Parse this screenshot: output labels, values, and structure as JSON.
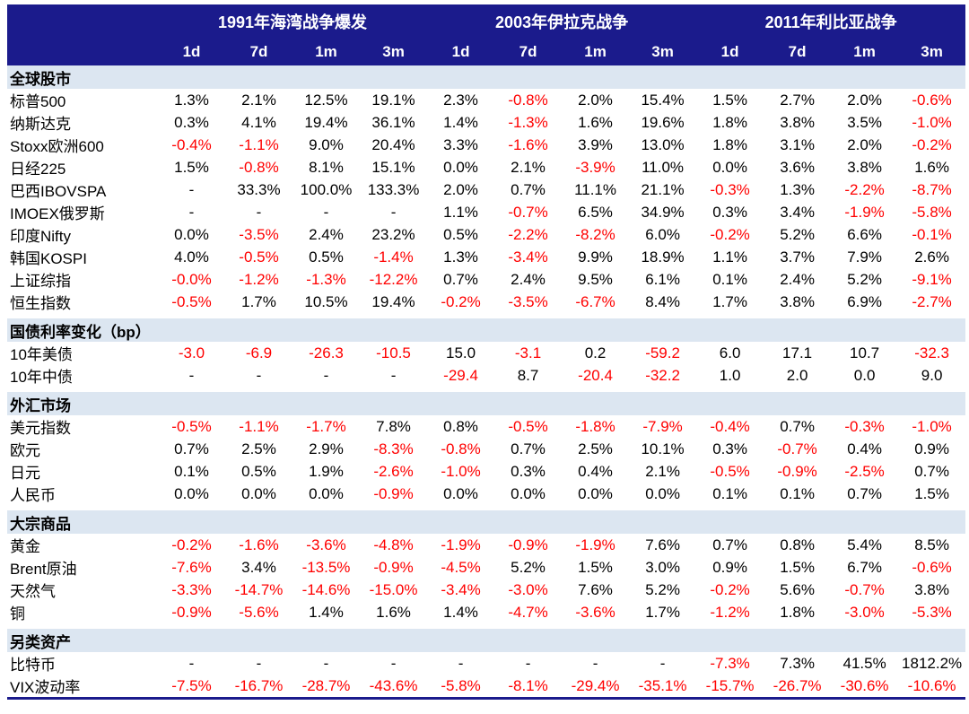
{
  "colors": {
    "header_bg": "#1B1B8C",
    "section_bg": "#DCE6F1",
    "negative_text": "#FF0000",
    "positive_text": "#000000",
    "page_bg": "#FFFFFF"
  },
  "chart_data": {
    "type": "table",
    "column_groups": [
      {
        "label": "1991年海湾战争爆发",
        "sub_columns": [
          "1d",
          "7d",
          "1m",
          "3m"
        ]
      },
      {
        "label": "2003年伊拉克战争",
        "sub_columns": [
          "1d",
          "7d",
          "1m",
          "3m"
        ]
      },
      {
        "label": "2011年利比亚战争",
        "sub_columns": [
          "1d",
          "7d",
          "1m",
          "3m"
        ]
      }
    ],
    "sections": [
      {
        "title": "全球股市",
        "rows": [
          {
            "label": "标普500",
            "values": [
              "1.3%",
              "2.1%",
              "12.5%",
              "19.1%",
              "2.3%",
              "-0.8%",
              "2.0%",
              "15.4%",
              "1.5%",
              "2.7%",
              "2.0%",
              "-0.6%"
            ]
          },
          {
            "label": "纳斯达克",
            "values": [
              "0.3%",
              "4.1%",
              "19.4%",
              "36.1%",
              "1.4%",
              "-1.3%",
              "1.6%",
              "19.6%",
              "1.8%",
              "3.8%",
              "3.5%",
              "-1.0%"
            ]
          },
          {
            "label": "Stoxx欧洲600",
            "values": [
              "-0.4%",
              "-1.1%",
              "9.0%",
              "20.4%",
              "3.3%",
              "-1.6%",
              "3.9%",
              "13.0%",
              "1.8%",
              "3.1%",
              "2.0%",
              "-0.2%"
            ]
          },
          {
            "label": "日经225",
            "values": [
              "1.5%",
              "-0.8%",
              "8.1%",
              "15.1%",
              "0.0%",
              "2.1%",
              "-3.9%",
              "11.0%",
              "0.0%",
              "3.6%",
              "3.8%",
              "1.6%"
            ]
          },
          {
            "label": "巴西IBOVSPA",
            "values": [
              "-",
              "33.3%",
              "100.0%",
              "133.3%",
              "2.0%",
              "0.7%",
              "11.1%",
              "21.1%",
              "-0.3%",
              "1.3%",
              "-2.2%",
              "-8.7%"
            ]
          },
          {
            "label": "IMOEX俄罗斯",
            "values": [
              "-",
              "-",
              "-",
              "-",
              "1.1%",
              "-0.7%",
              "6.5%",
              "34.9%",
              "0.3%",
              "3.4%",
              "-1.9%",
              "-5.8%"
            ]
          },
          {
            "label": "印度Nifty",
            "values": [
              "0.0%",
              "-3.5%",
              "2.4%",
              "23.2%",
              "0.5%",
              "-2.2%",
              "-8.2%",
              "6.0%",
              "-0.2%",
              "5.2%",
              "6.6%",
              "-0.1%"
            ]
          },
          {
            "label": "韩国KOSPI",
            "values": [
              "4.0%",
              "-0.5%",
              "0.5%",
              "-1.4%",
              "1.3%",
              "-3.4%",
              "9.9%",
              "18.9%",
              "1.1%",
              "3.7%",
              "7.9%",
              "2.6%"
            ]
          },
          {
            "label": "上证综指",
            "values": [
              "-0.0%",
              "-1.2%",
              "-1.3%",
              "-12.2%",
              "0.7%",
              "2.4%",
              "9.5%",
              "6.1%",
              "0.1%",
              "2.4%",
              "5.2%",
              "-9.1%"
            ]
          },
          {
            "label": "恒生指数",
            "values": [
              "-0.5%",
              "1.7%",
              "10.5%",
              "19.4%",
              "-0.2%",
              "-3.5%",
              "-6.7%",
              "8.4%",
              "1.7%",
              "3.8%",
              "6.9%",
              "-2.7%"
            ]
          }
        ]
      },
      {
        "title": "国债利率变化（bp）",
        "rows": [
          {
            "label": "10年美债",
            "values": [
              "-3.0",
              "-6.9",
              "-26.3",
              "-10.5",
              "15.0",
              "-3.1",
              "0.2",
              "-59.2",
              "6.0",
              "17.1",
              "10.7",
              "-32.3"
            ]
          },
          {
            "label": "10年中债",
            "values": [
              "-",
              "-",
              "-",
              "-",
              "-29.4",
              "8.7",
              "-20.4",
              "-32.2",
              "1.0",
              "2.0",
              "0.0",
              "9.0"
            ]
          }
        ]
      },
      {
        "title": "外汇市场",
        "rows": [
          {
            "label": "美元指数",
            "values": [
              "-0.5%",
              "-1.1%",
              "-1.7%",
              "7.8%",
              "0.8%",
              "-0.5%",
              "-1.8%",
              "-7.9%",
              "-0.4%",
              "0.7%",
              "-0.3%",
              "-1.0%"
            ]
          },
          {
            "label": "欧元",
            "values": [
              "0.7%",
              "2.5%",
              "2.9%",
              "-8.3%",
              "-0.8%",
              "0.7%",
              "2.5%",
              "10.1%",
              "0.3%",
              "-0.7%",
              "0.4%",
              "0.9%"
            ]
          },
          {
            "label": "日元",
            "values": [
              "0.1%",
              "0.5%",
              "1.9%",
              "-2.6%",
              "-1.0%",
              "0.3%",
              "0.4%",
              "2.1%",
              "-0.5%",
              "-0.9%",
              "-2.5%",
              "0.7%"
            ]
          },
          {
            "label": "人民币",
            "values": [
              "0.0%",
              "0.0%",
              "0.0%",
              "-0.9%",
              "0.0%",
              "0.0%",
              "0.0%",
              "0.0%",
              "0.1%",
              "0.1%",
              "0.7%",
              "1.5%"
            ]
          }
        ]
      },
      {
        "title": "大宗商品",
        "rows": [
          {
            "label": "黄金",
            "values": [
              "-0.2%",
              "-1.6%",
              "-3.6%",
              "-4.8%",
              "-1.9%",
              "-0.9%",
              "-1.9%",
              "7.6%",
              "0.7%",
              "0.8%",
              "5.4%",
              "8.5%"
            ]
          },
          {
            "label": "Brent原油",
            "values": [
              "-7.6%",
              "3.4%",
              "-13.5%",
              "-0.9%",
              "-4.5%",
              "5.2%",
              "1.5%",
              "3.0%",
              "0.9%",
              "1.5%",
              "6.7%",
              "-0.6%"
            ]
          },
          {
            "label": "天然气",
            "values": [
              "-3.3%",
              "-14.7%",
              "-14.6%",
              "-15.0%",
              "-3.4%",
              "-3.0%",
              "7.6%",
              "5.2%",
              "-0.2%",
              "5.6%",
              "-0.7%",
              "3.8%"
            ]
          },
          {
            "label": "铜",
            "values": [
              "-0.9%",
              "-5.6%",
              "1.4%",
              "1.6%",
              "1.4%",
              "-4.7%",
              "-3.6%",
              "1.7%",
              "-1.2%",
              "1.8%",
              "-3.0%",
              "-5.3%"
            ]
          }
        ]
      },
      {
        "title": "另类资产",
        "rows": [
          {
            "label": "比特币",
            "values": [
              "-",
              "-",
              "-",
              "-",
              "-",
              "-",
              "-",
              "-",
              "-7.3%",
              "7.3%",
              "41.5%",
              "1812.2%"
            ]
          },
          {
            "label": "VIX波动率",
            "values": [
              "-7.5%",
              "-16.7%",
              "-28.7%",
              "-43.6%",
              "-5.8%",
              "-8.1%",
              "-29.4%",
              "-35.1%",
              "-15.7%",
              "-26.7%",
              "-30.6%",
              "-10.6%"
            ]
          }
        ]
      }
    ]
  }
}
